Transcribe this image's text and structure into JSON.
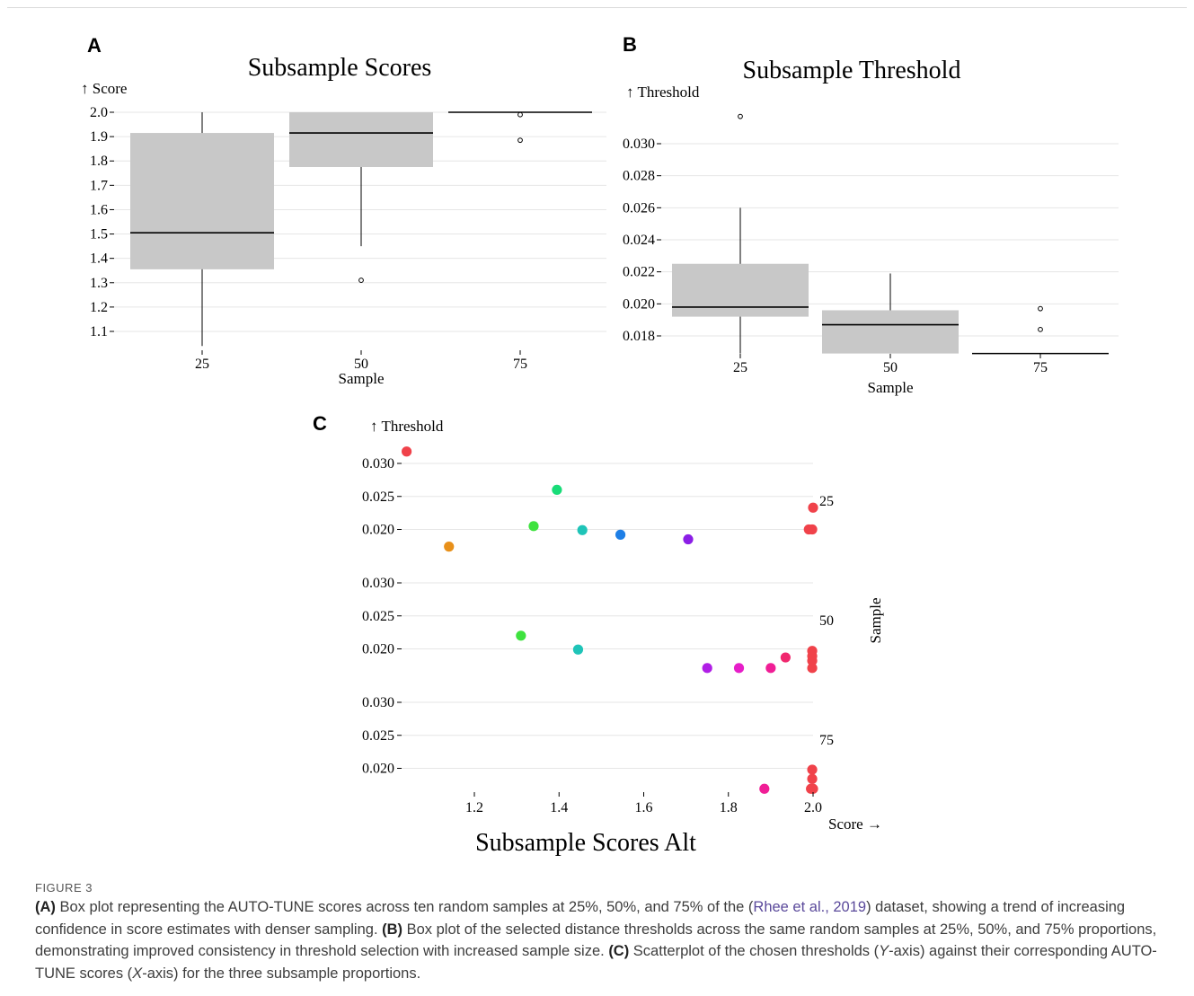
{
  "colors": {
    "box_fill": "#c8c8c8",
    "grid": "#e6e6e6",
    "median": "#000000",
    "link": "#5b4a9b"
  },
  "panels": {
    "a": {
      "letter": "A"
    },
    "b": {
      "letter": "B"
    },
    "c": {
      "letter": "C"
    }
  },
  "chart_data": [
    {
      "id": "A",
      "type": "box",
      "title": "Subsample Scores",
      "ylabel": "↑ Score",
      "xlabel": "Sample",
      "categories": [
        "25",
        "50",
        "75"
      ],
      "y_ticks": [
        "2.0",
        "1.9",
        "1.8",
        "1.7",
        "1.6",
        "1.5",
        "1.4",
        "1.3",
        "1.2",
        "1.1"
      ],
      "ylim": [
        1.04,
        2.0
      ],
      "boxes": [
        {
          "category": "25",
          "whisker_low": 1.04,
          "q1": 1.355,
          "median": 1.505,
          "q3": 1.915,
          "whisker_high": 2.0,
          "outliers": []
        },
        {
          "category": "50",
          "whisker_low": 1.45,
          "q1": 1.775,
          "median": 1.915,
          "q3": 2.0,
          "whisker_high": 2.0,
          "outliers": [
            1.31
          ]
        },
        {
          "category": "75",
          "whisker_low": 2.0,
          "q1": 2.0,
          "median": 2.0,
          "q3": 2.0,
          "whisker_high": 2.0,
          "outliers": [
            1.99,
            1.885
          ]
        }
      ]
    },
    {
      "id": "B",
      "type": "box",
      "title": "Subsample Threshold",
      "ylabel": "↑ Threshold",
      "xlabel": "Sample",
      "categories": [
        "25",
        "50",
        "75"
      ],
      "y_ticks": [
        "0.030",
        "0.028",
        "0.026",
        "0.024",
        "0.022",
        "0.020",
        "0.018"
      ],
      "ylim": [
        0.0167,
        0.0325
      ],
      "boxes": [
        {
          "category": "25",
          "whisker_low": 0.0169,
          "q1": 0.0192,
          "median": 0.0198,
          "q3": 0.0225,
          "whisker_high": 0.026,
          "outliers": [
            0.0317
          ]
        },
        {
          "category": "50",
          "whisker_low": 0.0169,
          "q1": 0.0169,
          "median": 0.0187,
          "q3": 0.0196,
          "whisker_high": 0.0219,
          "outliers": []
        },
        {
          "category": "75",
          "whisker_low": 0.0169,
          "q1": 0.0169,
          "median": 0.0169,
          "q3": 0.0169,
          "whisker_high": 0.0169,
          "outliers": [
            0.0197,
            0.0184
          ]
        }
      ]
    },
    {
      "id": "C",
      "type": "scatter",
      "title": "Subsample Scores Alt",
      "ylabel": "↑ Threshold",
      "xlabel": "Score →",
      "facet_label": "Sample",
      "x_ticks": [
        "1.2",
        "1.4",
        "1.6",
        "1.8",
        "2.0"
      ],
      "xlim": [
        1.03,
        2.0
      ],
      "facets": [
        {
          "name": "25",
          "y_ticks": [
            "0.030",
            "0.025",
            "0.020"
          ],
          "points": [
            {
              "x": 1.04,
              "y": 0.0318,
              "color": "#f0424a"
            },
            {
              "x": 1.14,
              "y": 0.0174,
              "color": "#e8901a"
            },
            {
              "x": 1.34,
              "y": 0.0205,
              "color": "#3ee23e"
            },
            {
              "x": 1.395,
              "y": 0.026,
              "color": "#18dc78"
            },
            {
              "x": 1.455,
              "y": 0.0199,
              "color": "#1fc4b8"
            },
            {
              "x": 1.545,
              "y": 0.0192,
              "color": "#1e7fe6"
            },
            {
              "x": 1.705,
              "y": 0.0185,
              "color": "#8b1ee6"
            },
            {
              "x": 1.99,
              "y": 0.02,
              "color": "#f0424a"
            },
            {
              "x": 1.998,
              "y": 0.02,
              "color": "#f0424a"
            },
            {
              "x": 2.0,
              "y": 0.0233,
              "color": "#f0424a"
            }
          ]
        },
        {
          "name": "50",
          "y_ticks": [
            "0.030",
            "0.025",
            "0.020"
          ],
          "points": [
            {
              "x": 1.31,
              "y": 0.022,
              "color": "#3ee23e"
            },
            {
              "x": 1.445,
              "y": 0.0199,
              "color": "#1fc4b8"
            },
            {
              "x": 1.75,
              "y": 0.0171,
              "color": "#b01ee6"
            },
            {
              "x": 1.825,
              "y": 0.0171,
              "color": "#e61ec8"
            },
            {
              "x": 1.9,
              "y": 0.0171,
              "color": "#f01e96"
            },
            {
              "x": 1.935,
              "y": 0.0187,
              "color": "#f0286e"
            },
            {
              "x": 1.998,
              "y": 0.0197,
              "color": "#f0424a"
            },
            {
              "x": 1.998,
              "y": 0.0189,
              "color": "#f0424a"
            },
            {
              "x": 1.998,
              "y": 0.0182,
              "color": "#f0424a"
            },
            {
              "x": 1.998,
              "y": 0.0171,
              "color": "#f0424a"
            }
          ]
        },
        {
          "name": "75",
          "y_ticks": [
            "0.030",
            "0.025",
            "0.020"
          ],
          "points": [
            {
              "x": 1.885,
              "y": 0.0169,
              "color": "#f01e96"
            },
            {
              "x": 1.995,
              "y": 0.0169,
              "color": "#f0424a"
            },
            {
              "x": 1.998,
              "y": 0.0198,
              "color": "#f0424a"
            },
            {
              "x": 1.998,
              "y": 0.0184,
              "color": "#f0424a"
            },
            {
              "x": 2.0,
              "y": 0.0169,
              "color": "#f0424a"
            }
          ]
        }
      ]
    }
  ],
  "caption": {
    "figure_label": "FIGURE 3",
    "part_a_label": "(A)",
    "part_a_text_1": " Box plot representing the AUTO-TUNE scores across ten random samples at 25%, 50%, and 75% of the (",
    "part_a_link": "Rhee et al., 2019",
    "part_a_text_2": ") dataset, showing a trend of increasing confidence in score estimates with denser sampling. ",
    "part_b_label": "(B)",
    "part_b_text": " Box plot of the selected distance thresholds across the same random samples at 25%, 50%, and 75% proportions, demonstrating improved consistency in threshold selection with increased sample size. ",
    "part_c_label": "(C)",
    "part_c_text_1": " Scatterplot of the chosen thresholds (",
    "part_c_y": "Y",
    "part_c_text_2": "-axis) against their corresponding AUTO-TUNE scores (",
    "part_c_x": "X",
    "part_c_text_3": "-axis) for the three subsample proportions."
  }
}
